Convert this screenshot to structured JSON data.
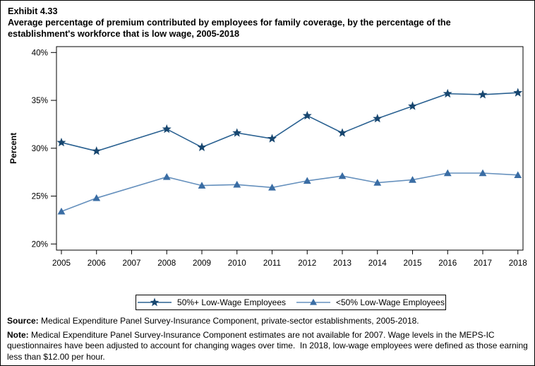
{
  "exhibit_label": "Exhibit 4.33",
  "title": "Average percentage of premium contributed by employees for family coverage, by the percentage of the establishment's workforce that is low wage, 2005-2018",
  "chart_data": {
    "type": "line",
    "title": "Average percentage of premium contributed by employees for family coverage, by the percentage of the establishment's workforce that is low wage, 2005-2018",
    "xlabel": "",
    "ylabel": "Percent",
    "ylim": [
      20,
      40
    ],
    "grid": false,
    "legend_position": "bottom",
    "missing_years_note": "2007 estimates not available",
    "yticks": [
      {
        "value": 40,
        "label": "40%"
      },
      {
        "value": 35,
        "label": "35%"
      },
      {
        "value": 30,
        "label": "30%"
      },
      {
        "value": 25,
        "label": "25%"
      },
      {
        "value": 20,
        "label": "20%"
      }
    ],
    "categories": [
      "2005",
      "2006",
      "2007",
      "2008",
      "2009",
      "2010",
      "2011",
      "2012",
      "2013",
      "2014",
      "2015",
      "2016",
      "2017",
      "2018"
    ],
    "series": [
      {
        "name": "50%+ Low-Wage Employees",
        "marker": "star",
        "marker_color": "#17466f",
        "line_color": "#2a6191",
        "values": [
          30.6,
          29.7,
          null,
          32.0,
          30.1,
          31.6,
          31.0,
          33.4,
          31.6,
          33.1,
          34.4,
          35.7,
          35.6,
          35.8
        ]
      },
      {
        "name": "<50% Low-Wage Employees",
        "marker": "triangle",
        "marker_color": "#3a6da4",
        "line_color": "#6590bd",
        "values": [
          23.4,
          24.8,
          null,
          27.0,
          26.1,
          26.2,
          25.9,
          26.6,
          27.1,
          26.4,
          26.7,
          27.4,
          27.4,
          27.2
        ]
      }
    ]
  },
  "footnotes": {
    "source_label": "Source:",
    "source_text": " Medical Expenditure Panel Survey-Insurance Component, private-sector establishments, 2005-2018.",
    "note_label": "Note:",
    "note_text": " Medical Expenditure Panel Survey-Insurance Component estimates are not available for 2007. Wage levels in the MEPS-IC questionnaires have been adjusted to account for changing wages over time.  In 2018, low-wage employees were defined as those earning less than $12.00 per hour."
  }
}
